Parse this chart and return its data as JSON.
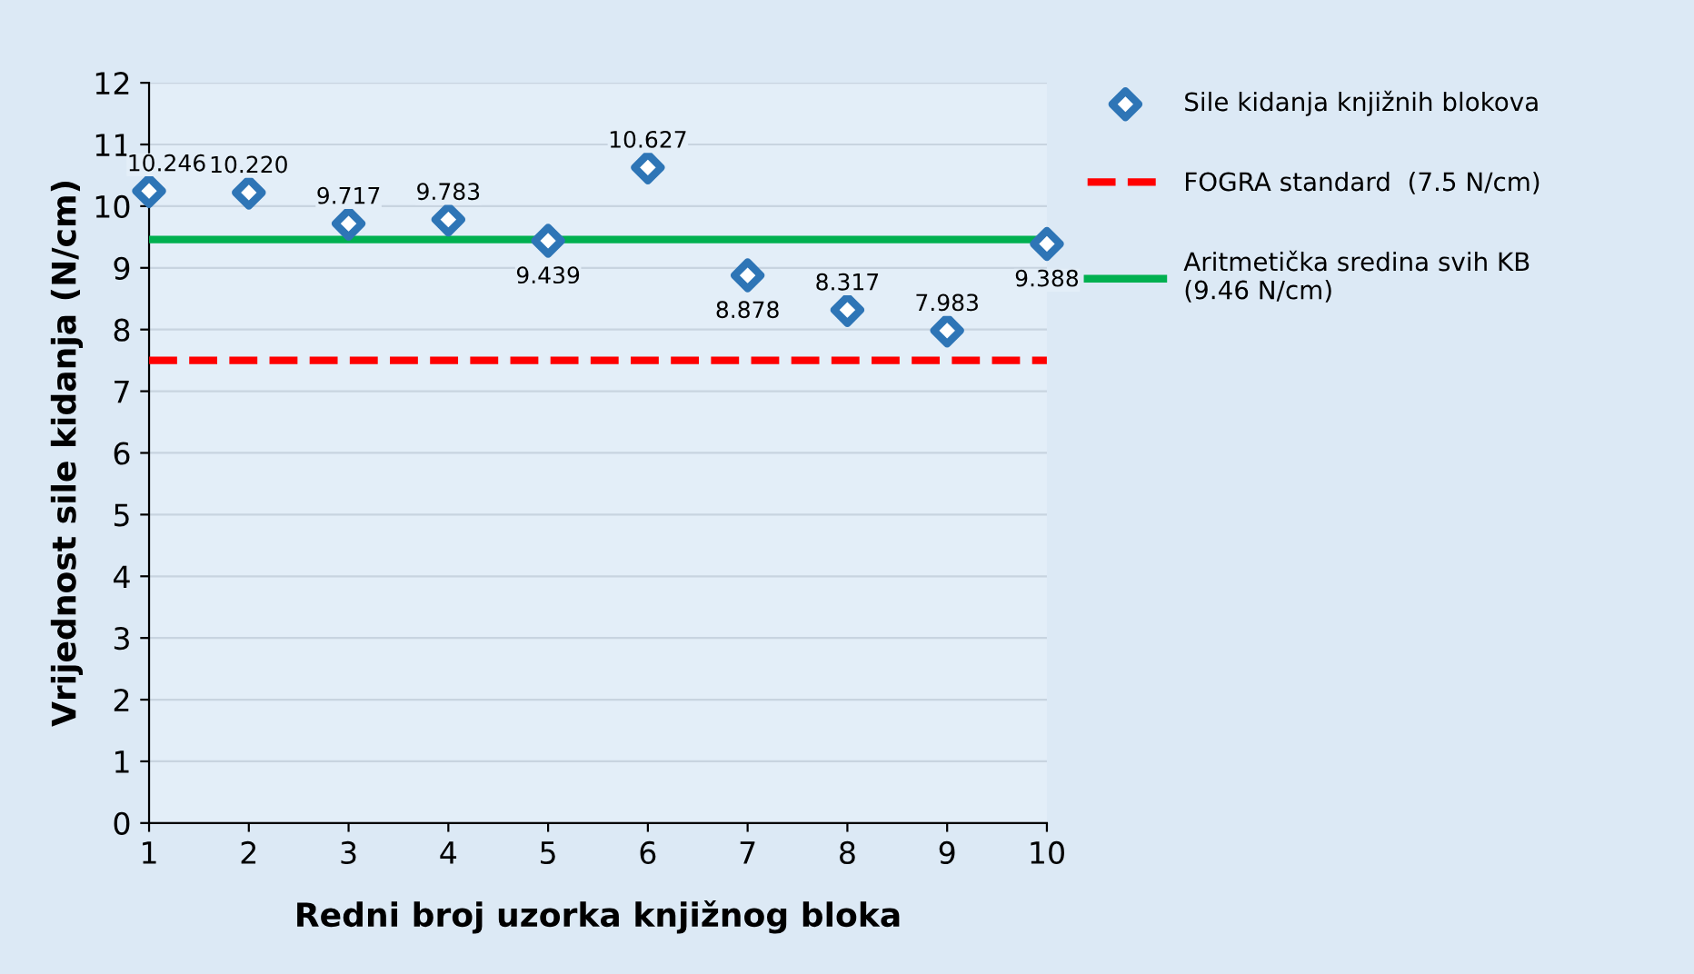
{
  "chart_data": {
    "type": "scatter",
    "xlabel": "Redni broj uzorka knjižnog bloka",
    "ylabel": "Vrijednost sile kidanja (N/cm)",
    "x": [
      1,
      2,
      3,
      4,
      5,
      6,
      7,
      8,
      9,
      10
    ],
    "series": [
      {
        "name": "Sile kidanja knjižnih blokova",
        "color": "#2e75b6",
        "values": [
          10.246,
          10.22,
          9.717,
          9.783,
          9.439,
          10.627,
          8.878,
          8.317,
          7.983,
          9.388
        ],
        "value_labels": [
          "10.246",
          "10.220",
          "9.717",
          "9.783",
          "9.439",
          "10.627",
          "8.878",
          "8.317",
          "7.983",
          "9.388"
        ]
      }
    ],
    "ref_lines": [
      {
        "axis": "y",
        "value": 7.5,
        "label": "FOGRA standard  (7.5 N/cm)",
        "color": "#ff0000",
        "line_style": "dashed"
      },
      {
        "axis": "y",
        "value": 9.46,
        "label": "Aritmetička sredina svih KB\n(9.46 N/cm)",
        "color": "#00b050",
        "line_style": "solid"
      }
    ],
    "xlim": [
      1,
      10
    ],
    "xticks": [
      1,
      2,
      3,
      4,
      5,
      6,
      7,
      8,
      9,
      10
    ],
    "ylim": [
      0,
      12
    ],
    "yticks": [
      0,
      1,
      2,
      3,
      4,
      5,
      6,
      7,
      8,
      9,
      10,
      11,
      12
    ],
    "grid": "y",
    "marker": "diamond",
    "legend": "right"
  }
}
